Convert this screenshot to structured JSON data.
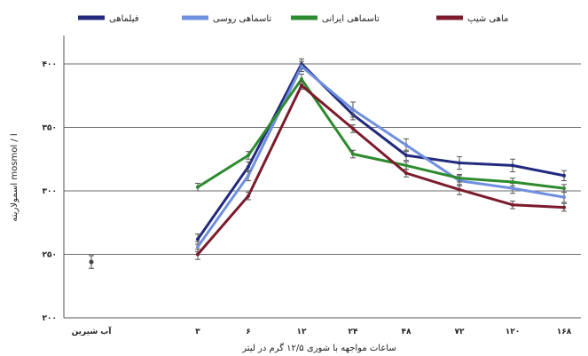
{
  "chart_data": {
    "type": "line",
    "title": "",
    "xlabel": "ساعات مواجهه با شوری ۱۲/۵ گرم در لیتر",
    "ylabel": "اسمولاریته mosmol / l",
    "ylim": [
      200,
      420
    ],
    "yticks": [
      "۴۰۰",
      "۳۵۰",
      "۳۰۰",
      "۲۵۰",
      "۲۰۰"
    ],
    "ytick_values": [
      400,
      350,
      300,
      250,
      200
    ],
    "categories": [
      "۳",
      "۶",
      "۱۲",
      "۲۴",
      "۴۸",
      "۷۲",
      "۱۲۰",
      "۱۶۸"
    ],
    "control": {
      "label": "آب شیرین",
      "value": 244,
      "error": 5
    },
    "grid": "horizontal",
    "legend_position": "top",
    "series": [
      {
        "name": "فیلماهی",
        "color": "#232a7e",
        "values": [
          262,
          319,
          400,
          360,
          328,
          322,
          320,
          312
        ],
        "errors": [
          4,
          4,
          4,
          4,
          4,
          5,
          5,
          4
        ]
      },
      {
        "name": "تاسماهی روسی",
        "color": "#6f8fe0",
        "values": [
          256,
          312,
          398,
          364,
          336,
          308,
          302,
          295
        ],
        "errors": [
          4,
          4,
          4,
          6,
          5,
          4,
          4,
          4
        ]
      },
      {
        "name": "تاسماهی ایرانی",
        "color": "#2e8a2e",
        "values": [
          303,
          328,
          388,
          329,
          320,
          310,
          307,
          302
        ],
        "errors": [
          3,
          3,
          4,
          3,
          3,
          3,
          3,
          3
        ]
      },
      {
        "name": "ماهی شیپ",
        "color": "#7b1b2b",
        "values": [
          250,
          296,
          383,
          349,
          314,
          301,
          289,
          287
        ],
        "errors": [
          4,
          3,
          3,
          3,
          3,
          4,
          3,
          3
        ]
      }
    ]
  }
}
